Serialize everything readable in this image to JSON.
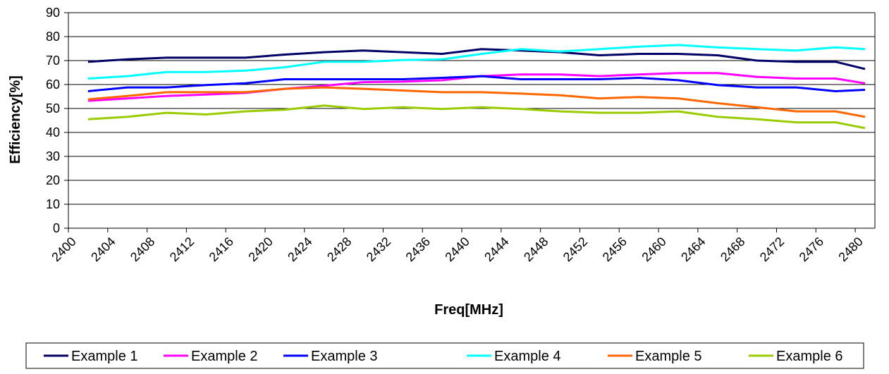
{
  "chart_data": {
    "type": "line",
    "title": "",
    "xlabel": "Freq[MHz]",
    "ylabel": "Efficiency[%]",
    "ylim": [
      0,
      90
    ],
    "yticks": [
      "0",
      "10",
      "20",
      "30",
      "40",
      "50",
      "60",
      "70",
      "80",
      "90"
    ],
    "xlim": [
      2400,
      2482
    ],
    "xticks": [
      "2400",
      "2404",
      "2408",
      "2412",
      "2416",
      "2420",
      "2424",
      "2428",
      "2432",
      "2436",
      "2440",
      "2444",
      "2448",
      "2452",
      "2456",
      "2460",
      "2464",
      "2468",
      "2472",
      "2476",
      "2480"
    ],
    "x": [
      2402,
      2406,
      2410,
      2414,
      2418,
      2422,
      2426,
      2430,
      2434,
      2438,
      2442,
      2446,
      2450,
      2454,
      2458,
      2462,
      2466,
      2470,
      2474,
      2478,
      2481
    ],
    "grid": "horizontal",
    "legend_position": "bottom",
    "series": [
      {
        "name": "Example 1",
        "color": "#000066",
        "values": [
          69.5,
          70.5,
          71.2,
          71.2,
          71.2,
          72.5,
          73.5,
          74.2,
          73.5,
          72.8,
          74.8,
          74.2,
          73.5,
          72.2,
          72.8,
          72.8,
          72.2,
          70.0,
          69.5,
          69.5,
          66.5
        ]
      },
      {
        "name": "Example 2",
        "color": "#ff00ff",
        "values": [
          53.2,
          54.2,
          55.2,
          55.8,
          56.5,
          58.2,
          59.5,
          61.0,
          61.2,
          61.8,
          63.5,
          64.2,
          64.2,
          63.5,
          64.2,
          64.8,
          64.8,
          63.2,
          62.5,
          62.5,
          60.5
        ]
      },
      {
        "name": "Example 3",
        "color": "#0000ff",
        "values": [
          57.2,
          58.8,
          58.8,
          59.8,
          60.5,
          62.2,
          62.2,
          62.2,
          62.2,
          62.8,
          63.5,
          62.2,
          62.2,
          62.2,
          62.8,
          61.8,
          59.8,
          58.8,
          58.8,
          57.2,
          57.8
        ]
      },
      {
        "name": "Example 4",
        "color": "#00ffff",
        "values": [
          62.5,
          63.5,
          65.2,
          65.2,
          65.8,
          67.2,
          69.5,
          69.5,
          70.2,
          70.5,
          72.8,
          74.8,
          73.8,
          74.8,
          75.8,
          76.5,
          75.5,
          74.8,
          74.2,
          75.5,
          74.8
        ]
      },
      {
        "name": "Example 5",
        "color": "#ff6600",
        "values": [
          53.8,
          55.2,
          56.8,
          56.8,
          56.8,
          58.2,
          58.8,
          58.2,
          57.5,
          56.8,
          56.8,
          56.2,
          55.5,
          54.2,
          54.8,
          54.2,
          52.2,
          50.5,
          48.8,
          48.8,
          46.5
        ]
      },
      {
        "name": "Example 6",
        "color": "#99cc00",
        "values": [
          45.5,
          46.5,
          48.2,
          47.5,
          48.8,
          49.5,
          51.2,
          49.8,
          50.5,
          49.8,
          50.5,
          49.8,
          48.8,
          48.2,
          48.2,
          48.8,
          46.5,
          45.5,
          44.2,
          44.2,
          41.8
        ]
      }
    ]
  }
}
